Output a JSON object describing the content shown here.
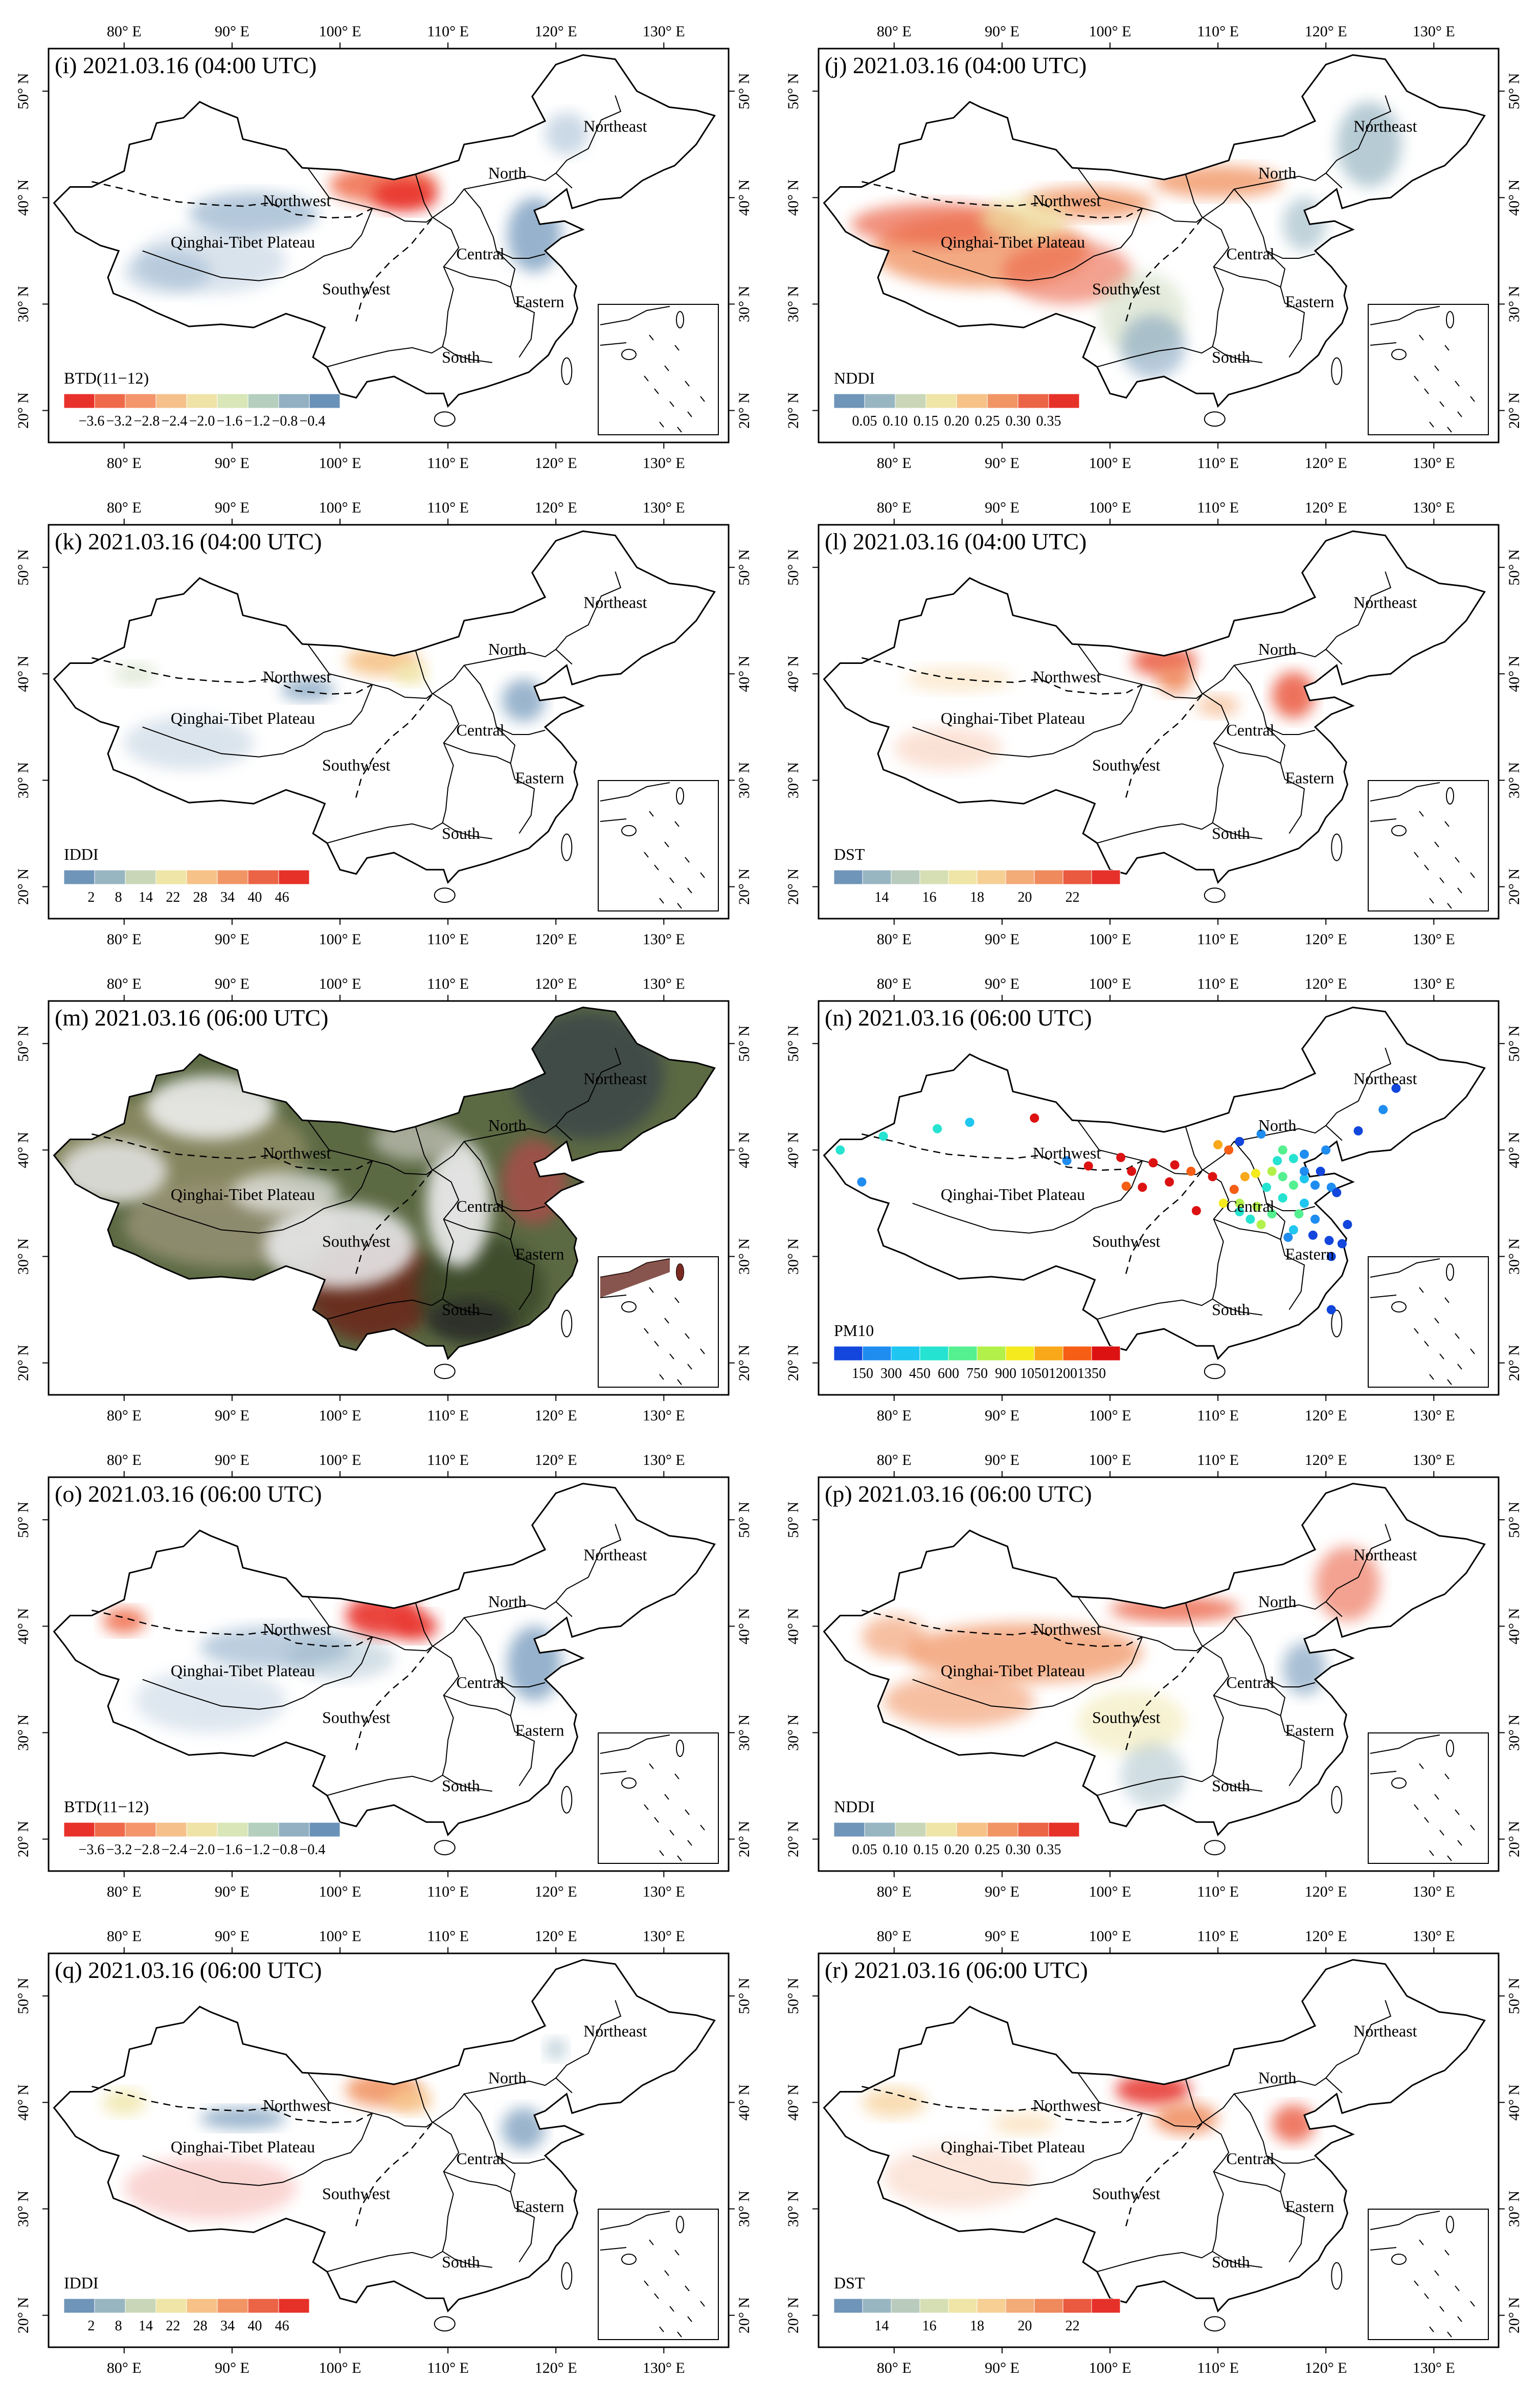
{
  "axes": {
    "lon_labels": [
      "80° E",
      "90° E",
      "100° E",
      "110° E",
      "120° E",
      "130° E"
    ],
    "lat_labels": [
      "20° N",
      "30° N",
      "40° N",
      "50° N"
    ]
  },
  "regions": [
    "Northeast",
    "North",
    "Northwest",
    "Qinghai-Tibet Plateau",
    "Central",
    "Southwest",
    "Eastern",
    "South"
  ],
  "palettes": {
    "btd": [
      "#e8312a",
      "#ef6a4a",
      "#f4956b",
      "#f6c08a",
      "#f0e3a8",
      "#d8e6b8",
      "#b4cfbd",
      "#92b0c2",
      "#6a92b8"
    ],
    "nddi": [
      "#6f95b8",
      "#98b6c2",
      "#c9d7b8",
      "#efe5a6",
      "#f6c287",
      "#f19565",
      "#eb6446",
      "#e63128"
    ],
    "iddi": [
      "#6f95b8",
      "#98b6c2",
      "#c9d7b8",
      "#efe5a6",
      "#f6c287",
      "#f19565",
      "#eb6446",
      "#e63128"
    ],
    "dst": [
      "#6f95b8",
      "#98b6c2",
      "#b9cbbd",
      "#d6dfb4",
      "#efe5a6",
      "#f6cf94",
      "#f3ab78",
      "#ef8a5c",
      "#ea5a40",
      "#e6302a"
    ],
    "pm10": [
      "#1246dc",
      "#1f8cf0",
      "#1ec6f0",
      "#25e3d0",
      "#55f090",
      "#b2f04a",
      "#f4ea1e",
      "#f8a818",
      "#f55e14",
      "#dc1212"
    ]
  },
  "panels": [
    {
      "id": "i",
      "title": "(i) 2021.03.16 (04:00 UTC)",
      "type": "BTD(11−12)",
      "legend_title": "BTD(11−12)",
      "palette": "btd",
      "legend_labels": [
        "−3.6",
        "−3.2",
        "−2.8",
        "−2.4",
        "−2.0",
        "−1.6",
        "−1.2",
        "−0.8",
        "−0.4"
      ]
    },
    {
      "id": "j",
      "title": "(j) 2021.03.16 (04:00 UTC)",
      "type": "NDDI",
      "legend_title": "NDDI",
      "palette": "nddi",
      "legend_labels": [
        "0.05",
        "0.10",
        "0.15",
        "0.20",
        "0.25",
        "0.30",
        "0.35"
      ]
    },
    {
      "id": "k",
      "title": "(k) 2021.03.16 (04:00 UTC)",
      "type": "IDDI",
      "legend_title": "IDDI",
      "palette": "iddi",
      "legend_labels": [
        "2",
        "8",
        "14",
        "22",
        "28",
        "34",
        "40",
        "46"
      ]
    },
    {
      "id": "l",
      "title": "(l) 2021.03.16 (04:00 UTC)",
      "type": "DST",
      "legend_title": "DST",
      "palette": "dst",
      "legend_labels": [
        "14",
        "16",
        "18",
        "20",
        "22"
      ]
    },
    {
      "id": "m",
      "title": "(m) 2021.03.16 (06:00 UTC)",
      "type": "truecolor",
      "legend_title": "",
      "palette": "",
      "legend_labels": []
    },
    {
      "id": "n",
      "title": "(n) 2021.03.16 (06:00 UTC)",
      "type": "PM10",
      "legend_title": "PM10",
      "palette": "pm10",
      "legend_labels": [
        "150",
        "300",
        "450",
        "600",
        "750",
        "900",
        "1050",
        "1200",
        "1350"
      ]
    },
    {
      "id": "o",
      "title": "(o) 2021.03.16 (06:00 UTC)",
      "type": "BTD(11−12)",
      "legend_title": "BTD(11−12)",
      "palette": "btd",
      "legend_labels": [
        "−3.6",
        "−3.2",
        "−2.8",
        "−2.4",
        "−2.0",
        "−1.6",
        "−1.2",
        "−0.8",
        "−0.4"
      ]
    },
    {
      "id": "p",
      "title": "(p) 2021.03.16 (06:00 UTC)",
      "type": "NDDI",
      "legend_title": "NDDI",
      "palette": "nddi",
      "legend_labels": [
        "0.05",
        "0.10",
        "0.15",
        "0.20",
        "0.25",
        "0.30",
        "0.35"
      ]
    },
    {
      "id": "q",
      "title": "(q) 2021.03.16 (06:00 UTC)",
      "type": "IDDI",
      "legend_title": "IDDI",
      "palette": "iddi",
      "legend_labels": [
        "2",
        "8",
        "14",
        "22",
        "28",
        "34",
        "40",
        "46"
      ]
    },
    {
      "id": "r",
      "title": "(r) 2021.03.16 (06:00 UTC)",
      "type": "DST",
      "legend_title": "DST",
      "palette": "dst",
      "legend_labels": [
        "14",
        "16",
        "18",
        "20",
        "22"
      ]
    }
  ]
}
